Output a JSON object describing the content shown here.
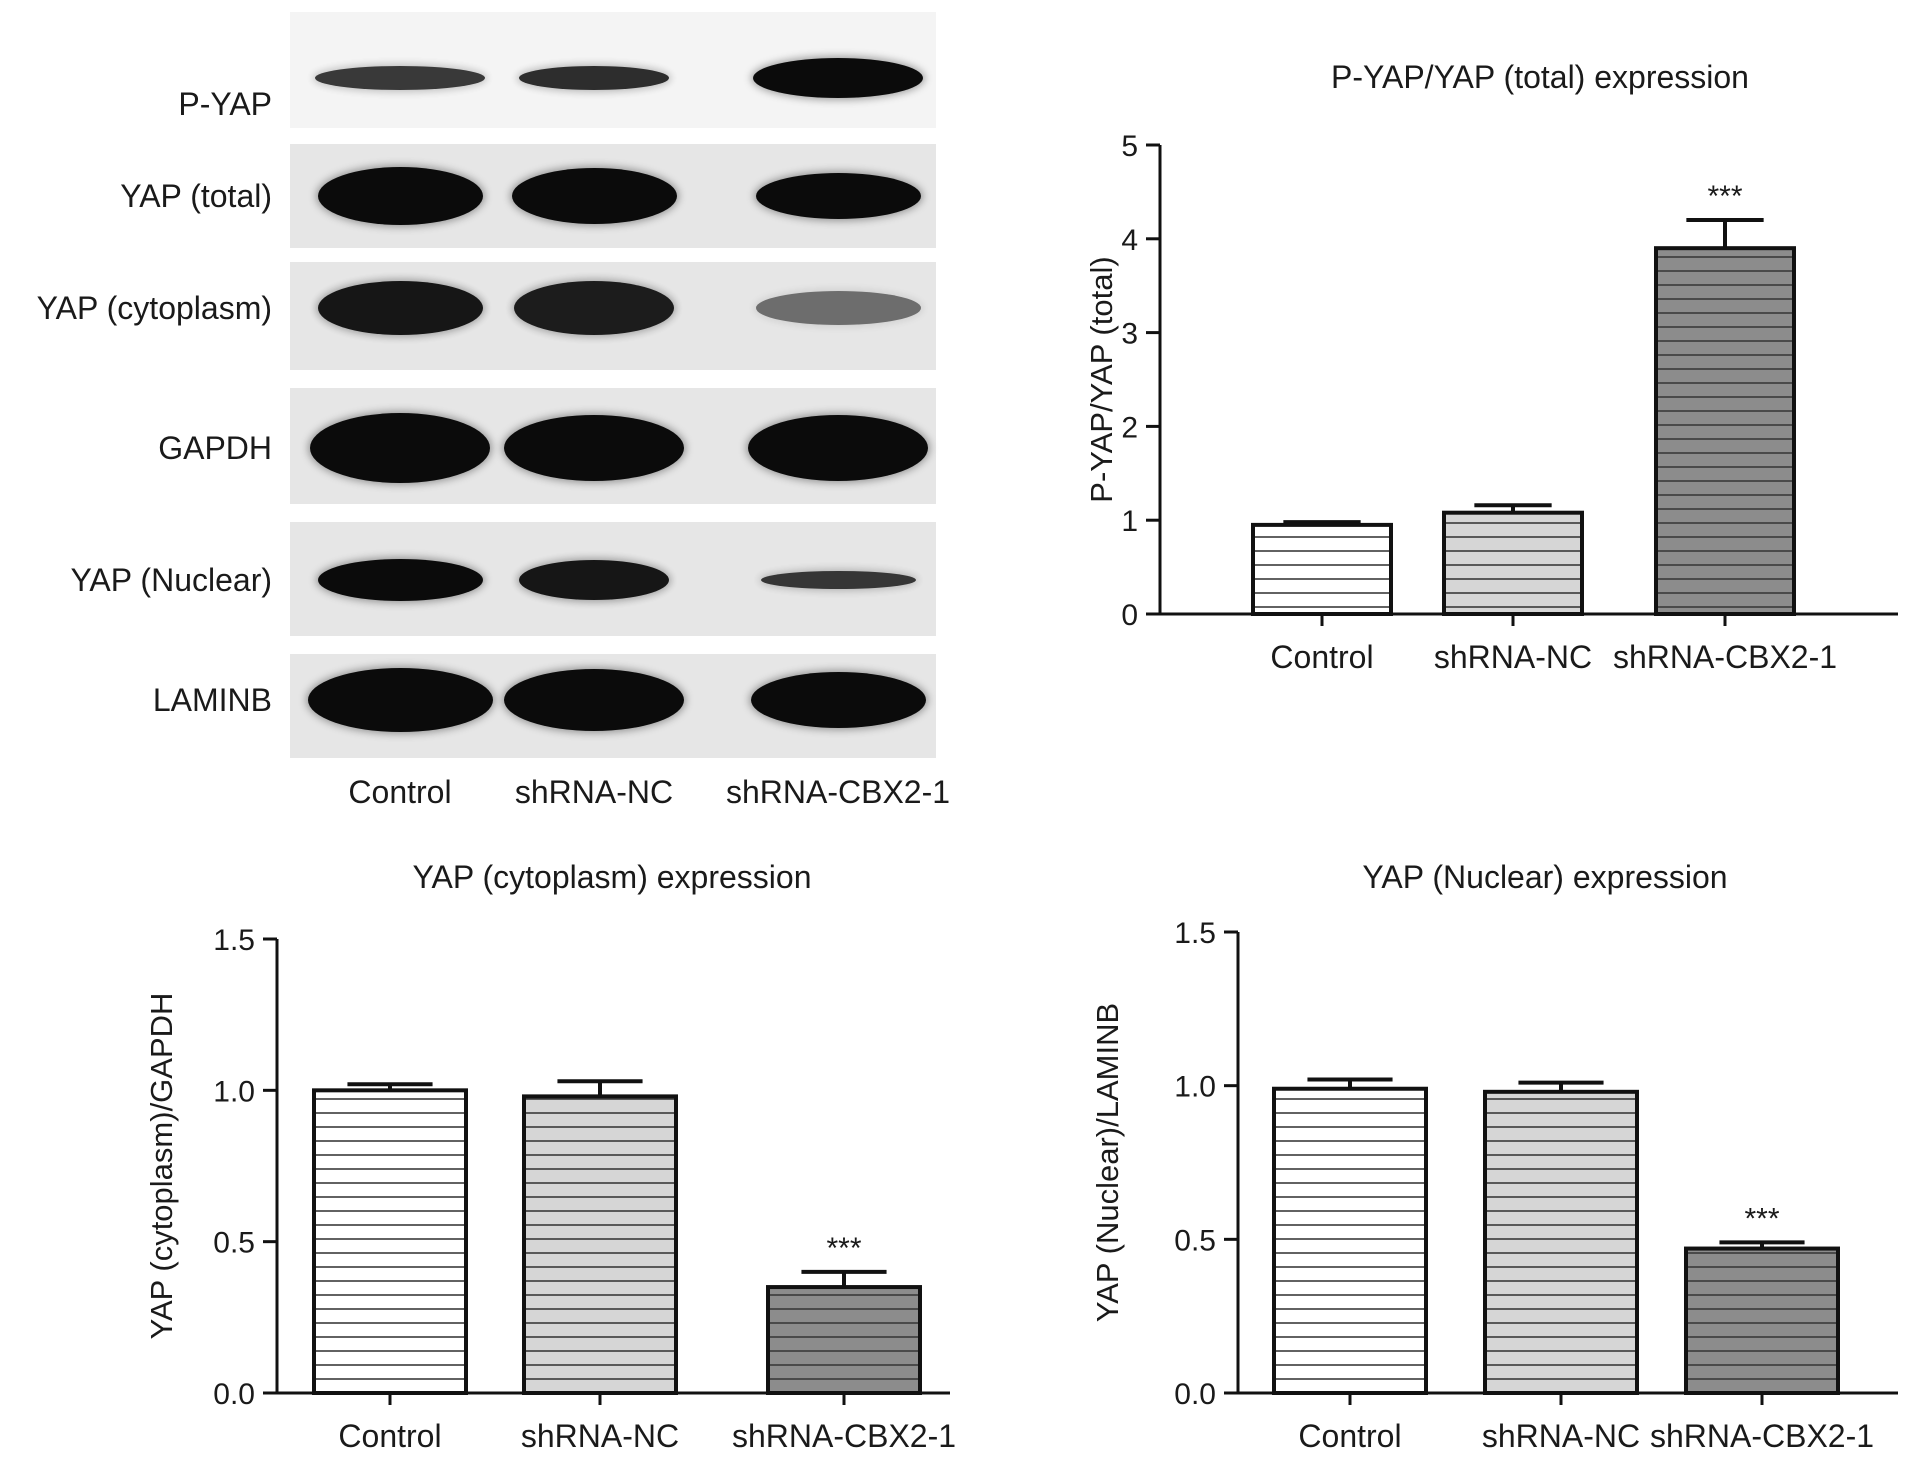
{
  "blot": {
    "rows": [
      "P-YAP",
      "YAP (total)",
      "YAP (cytoplasm)",
      "GAPDH",
      "YAP (Nuclear)",
      "LAMINB"
    ],
    "lanes": [
      "Control",
      "shRNA-NC",
      "shRNA-CBX2-1"
    ]
  },
  "chart_data": [
    {
      "type": "bar",
      "title": "P-YAP/YAP (total) expression",
      "ylabel": "P-YAP/YAP (total)",
      "xlabel": "",
      "categories": [
        "Control",
        "shRNA-NC",
        "shRNA-CBX2-1"
      ],
      "values": [
        0.95,
        1.08,
        3.9
      ],
      "errors": [
        0.03,
        0.08,
        0.3
      ],
      "annotations": [
        "",
        "",
        "***"
      ],
      "ylim": [
        0,
        5
      ],
      "yticks": [
        "0",
        "1",
        "2",
        "3",
        "4",
        "5"
      ],
      "grid": false
    },
    {
      "type": "bar",
      "title": "YAP (cytoplasm) expression",
      "ylabel": "YAP (cytoplasm)/GAPDH",
      "xlabel": "",
      "categories": [
        "Control",
        "shRNA-NC",
        "shRNA-CBX2-1"
      ],
      "values": [
        1.0,
        0.98,
        0.35
      ],
      "errors": [
        0.02,
        0.05,
        0.05
      ],
      "annotations": [
        "",
        "",
        "***"
      ],
      "ylim": [
        0,
        1.5
      ],
      "yticks": [
        "0.0",
        "0.5",
        "1.0",
        "1.5"
      ],
      "grid": false
    },
    {
      "type": "bar",
      "title": "YAP (Nuclear) expression",
      "ylabel": "YAP (Nuclear)/LAMINB",
      "xlabel": "",
      "categories": [
        "Control",
        "shRNA-NC",
        "shRNA-CBX2-1"
      ],
      "values": [
        0.99,
        0.98,
        0.47
      ],
      "errors": [
        0.03,
        0.03,
        0.02
      ],
      "annotations": [
        "",
        "",
        "***"
      ],
      "ylim": [
        0,
        1.5
      ],
      "yticks": [
        "0.0",
        "0.5",
        "1.0",
        "1.5"
      ],
      "grid": false
    }
  ],
  "colors": {
    "bar_fills": [
      "#ffffff",
      "#d6d6d6",
      "#8c8c8c"
    ],
    "stripe": "#3a3a3a",
    "axis": "#111111",
    "blot_background": "#e6e6e6",
    "band": "#0b0b0b"
  }
}
